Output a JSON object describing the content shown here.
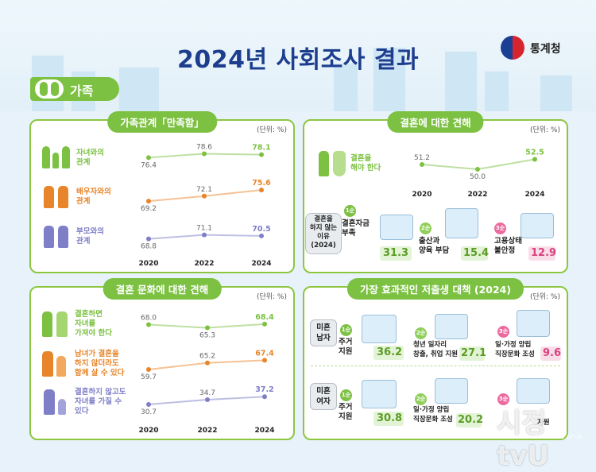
{
  "header": {
    "title": "2024년 사회조사 결과",
    "logo_text": "통계청",
    "section_tag": "가족"
  },
  "colors": {
    "green": "#7cc142",
    "orange": "#e8852a",
    "purple": "#7f7fc8",
    "pink": "#ec6a9f",
    "navy": "#1d3e8f"
  },
  "family_relations": {
    "title": "가족관계「만족함」",
    "unit": "(단위: %)",
    "years": [
      "2020",
      "2022",
      "2024"
    ],
    "rows": [
      {
        "label": "자녀와의\n관계",
        "values": [
          "76.4",
          "78.6",
          "78.1"
        ],
        "color": "#7cc142"
      },
      {
        "label": "배우자와의\n관계",
        "values": [
          "69.2",
          "72.1",
          "75.6"
        ],
        "color": "#e8852a"
      },
      {
        "label": "부모와의\n관계",
        "values": [
          "68.8",
          "71.1",
          "70.5"
        ],
        "color": "#7f7fc8"
      }
    ]
  },
  "marriage_view": {
    "title": "결혼에 대한 견해",
    "unit": "(단위: %)",
    "years": [
      "2020",
      "2022",
      "2024"
    ],
    "row": {
      "label": "결혼을\n해야 한다",
      "values": [
        "51.2",
        "50.0",
        "52.5"
      ],
      "color": "#7cc142"
    },
    "reasons": {
      "badge": "결혼을\n하지 않는\n이유\n(2024)",
      "items": [
        {
          "rank": "1순위",
          "label": "결혼자금\n부족",
          "value": "31.3",
          "color": "#7cc142"
        },
        {
          "rank": "2순위",
          "label": "출산과\n양육 부담",
          "value": "15.4",
          "color": "#8fcf5a"
        },
        {
          "rank": "3순위",
          "label": "고용상태\n불안정",
          "value": "12.9",
          "color": "#ec6a9f"
        }
      ]
    }
  },
  "marriage_culture": {
    "title": "결혼 문화에 대한 견해",
    "unit": "(단위: %)",
    "years": [
      "2020",
      "2022",
      "2024"
    ],
    "rows": [
      {
        "label": "결혼하면\n자녀를\n가져야 한다",
        "values": [
          "68.0",
          "65.3",
          "68.4"
        ],
        "color": "#7cc142"
      },
      {
        "label": "남녀가 결혼을\n하지 않더라도\n함께 살 수 있다",
        "values": [
          "59.7",
          "65.2",
          "67.4"
        ],
        "color": "#e8852a"
      },
      {
        "label": "결혼하지 않고도\n자녀를 가질 수\n있다",
        "values": [
          "30.7",
          "34.7",
          "37.2"
        ],
        "color": "#7f7fc8"
      }
    ]
  },
  "low_birth_policy": {
    "title": "가장 효과적인 저출생 대책 (2024)",
    "unit": "(단위: %)",
    "groups": [
      {
        "badge": "미혼\n남자",
        "items": [
          {
            "rank": "1순위",
            "label": "주거\n지원",
            "value": "36.2"
          },
          {
            "rank": "2순위",
            "label": "청년 일자리\n창출, 취업 지원",
            "value": "27.1"
          },
          {
            "rank": "3순위",
            "label": "일·가정 양립\n직장문화 조성",
            "value": "9.6"
          }
        ]
      },
      {
        "badge": "미혼\n여자",
        "items": [
          {
            "rank": "1순위",
            "label": "주거\n지원",
            "value": "30.8"
          },
          {
            "rank": "2순위",
            "label": "일·가정 양립\n직장문화 조성",
            "value": "20.2"
          },
          {
            "rank": "3순위",
            "label": "지원",
            "value": ""
          }
        ]
      }
    ]
  },
  "watermark": {
    "text": "시정tvU",
    "sub": "The voice of us"
  }
}
